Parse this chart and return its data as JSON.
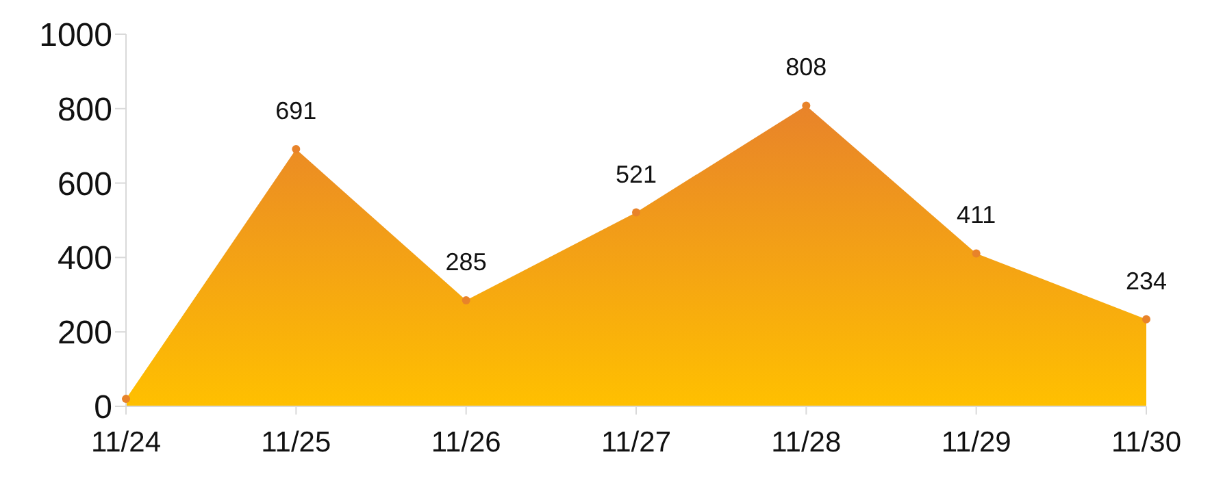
{
  "chart_data": {
    "type": "area",
    "categories": [
      "11/24",
      "11/25",
      "11/26",
      "11/27",
      "11/28",
      "11/29",
      "11/30"
    ],
    "series": [
      {
        "color": "#e8832a",
        "values": [
          20,
          691,
          285,
          521,
          808,
          411,
          234
        ],
        "value_labels": [
          null,
          "691",
          "285",
          "521",
          "808",
          "411",
          "234"
        ]
      }
    ],
    "ylim": [
      0,
      1000
    ],
    "yticks": [
      0,
      200,
      400,
      600,
      800,
      1000
    ],
    "marker": "circle"
  }
}
